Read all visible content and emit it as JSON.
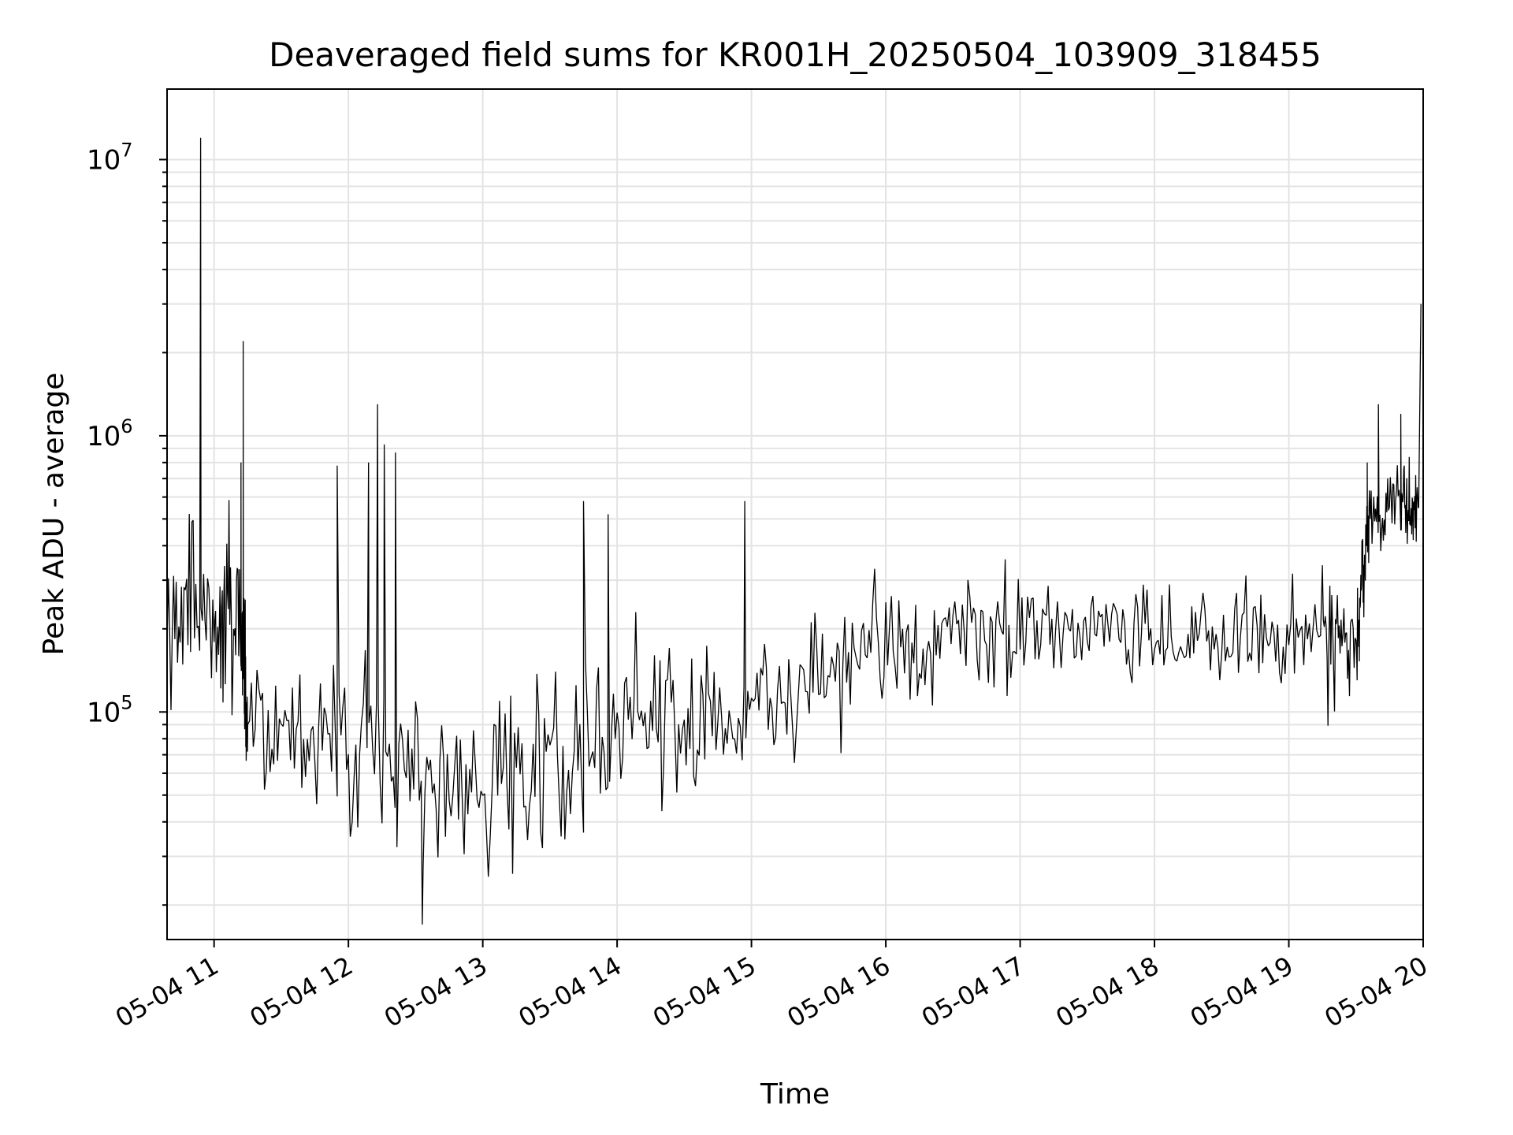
{
  "chart_data": {
    "type": "line",
    "title": "Deaveraged field sums for KR001H_20250504_103909_318455",
    "xlabel": "Time",
    "ylabel": "Peak ADU - average",
    "yscale": "log",
    "ylim": [
      15000,
      18000000
    ],
    "xlim": [
      "2025-05-04 10:39",
      "2025-05-04 20:00"
    ],
    "x_ticks": [
      "05-04 11",
      "05-04 12",
      "05-04 13",
      "05-04 14",
      "05-04 15",
      "05-04 16",
      "05-04 17",
      "05-04 18",
      "05-04 19",
      "05-04 20"
    ],
    "y_ticks": [
      {
        "value": 100000,
        "base": "10",
        "exp": "5"
      },
      {
        "value": 1000000,
        "base": "10",
        "exp": "6"
      },
      {
        "value": 10000000,
        "base": "10",
        "exp": "7"
      }
    ],
    "grid": true,
    "line_color": "#000000",
    "series": [
      {
        "samples_per_segment": 36,
        "profile": [
          {
            "t": "2025-05-04 10:39",
            "median": 250000,
            "spread": 1.9
          },
          {
            "t": "2025-05-04 11:00",
            "median": 210000,
            "spread": 1.9
          },
          {
            "t": "2025-05-04 11:12",
            "median": 200000,
            "spread": 2.0
          },
          {
            "t": "2025-05-04 11:15",
            "median": 100000,
            "spread": 1.6
          },
          {
            "t": "2025-05-04 11:45",
            "median": 85000,
            "spread": 1.8
          },
          {
            "t": "2025-05-04 12:15",
            "median": 80000,
            "spread": 2.1
          },
          {
            "t": "2025-05-04 12:45",
            "median": 50000,
            "spread": 2.0
          },
          {
            "t": "2025-05-04 13:15",
            "median": 60000,
            "spread": 2.0
          },
          {
            "t": "2025-05-04 13:45",
            "median": 75000,
            "spread": 2.0
          },
          {
            "t": "2025-05-04 14:15",
            "median": 100000,
            "spread": 1.8
          },
          {
            "t": "2025-05-04 14:45",
            "median": 95000,
            "spread": 1.6
          },
          {
            "t": "2025-05-04 15:15",
            "median": 110000,
            "spread": 1.6
          },
          {
            "t": "2025-05-04 15:45",
            "median": 150000,
            "spread": 1.5
          },
          {
            "t": "2025-05-04 16:15",
            "median": 175000,
            "spread": 1.5
          },
          {
            "t": "2025-05-04 16:45",
            "median": 200000,
            "spread": 1.5
          },
          {
            "t": "2025-05-04 17:15",
            "median": 195000,
            "spread": 1.5
          },
          {
            "t": "2025-05-04 17:45",
            "median": 190000,
            "spread": 1.5
          },
          {
            "t": "2025-05-04 18:15",
            "median": 185000,
            "spread": 1.5
          },
          {
            "t": "2025-05-04 18:45",
            "median": 180000,
            "spread": 1.5
          },
          {
            "t": "2025-05-04 19:15",
            "median": 180000,
            "spread": 1.5
          },
          {
            "t": "2025-05-04 19:30",
            "median": 190000,
            "spread": 1.4
          },
          {
            "t": "2025-05-04 19:36",
            "median": 500000,
            "spread": 1.4
          },
          {
            "t": "2025-05-04 19:50",
            "median": 600000,
            "spread": 1.4
          },
          {
            "t": "2025-05-04 19:58",
            "median": 550000,
            "spread": 1.4
          }
        ],
        "spikes": [
          {
            "t": "2025-05-04 10:54",
            "y": 12000000
          },
          {
            "t": "2025-05-04 11:13",
            "y": 2200000
          },
          {
            "t": "2025-05-04 11:12",
            "y": 800000
          },
          {
            "t": "2025-05-04 11:55",
            "y": 780000
          },
          {
            "t": "2025-05-04 12:09",
            "y": 800000
          },
          {
            "t": "2025-05-04 12:13",
            "y": 1300000
          },
          {
            "t": "2025-05-04 12:16",
            "y": 930000
          },
          {
            "t": "2025-05-04 12:21",
            "y": 870000
          },
          {
            "t": "2025-05-04 12:33",
            "y": 17000
          },
          {
            "t": "2025-05-04 13:45",
            "y": 580000
          },
          {
            "t": "2025-05-04 13:56",
            "y": 520000
          },
          {
            "t": "2025-05-04 14:57",
            "y": 580000
          },
          {
            "t": "2025-05-04 19:35",
            "y": 800000
          },
          {
            "t": "2025-05-04 19:40",
            "y": 1300000
          },
          {
            "t": "2025-05-04 19:50",
            "y": 1200000
          },
          {
            "t": "2025-05-04 19:59",
            "y": 3000000
          }
        ]
      }
    ]
  }
}
